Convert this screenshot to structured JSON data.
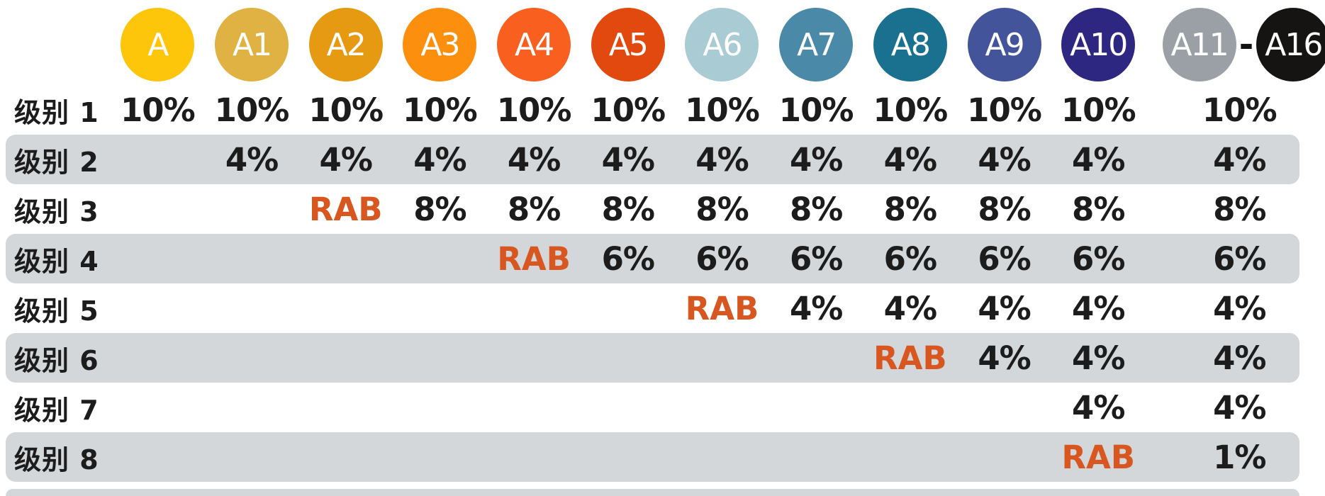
{
  "chart_data": {
    "type": "table",
    "description_columns_note": "Header badges A through A10 plus a merged A11-A16 group; rows are levels with referral percentages; RAB markers in accent orange.",
    "columns": [
      {
        "id": "A",
        "label": "A",
        "color": "#FDC60B"
      },
      {
        "id": "A1",
        "label": "A1",
        "color": "#DFB243"
      },
      {
        "id": "A2",
        "label": "A2",
        "color": "#E59A12"
      },
      {
        "id": "A3",
        "label": "A3",
        "color": "#FD8F0E"
      },
      {
        "id": "A4",
        "label": "A4",
        "color": "#F96020"
      },
      {
        "id": "A5",
        "label": "A5",
        "color": "#E2490F"
      },
      {
        "id": "A6",
        "label": "A6",
        "color": "#A9CBD3"
      },
      {
        "id": "A7",
        "label": "A7",
        "color": "#4A89A7"
      },
      {
        "id": "A8",
        "label": "A8",
        "color": "#19708F"
      },
      {
        "id": "A9",
        "label": "A9",
        "color": "#44549B"
      },
      {
        "id": "A10",
        "label": "A10",
        "color": "#2D2781"
      },
      {
        "id": "A11",
        "label": "A11",
        "color": "#9AA0A6"
      },
      {
        "id": "A16",
        "label": "A16",
        "color": "#161413"
      }
    ],
    "header_separator": "-",
    "value_columns": [
      "A",
      "A1",
      "A2",
      "A3",
      "A4",
      "A5",
      "A6",
      "A7",
      "A8",
      "A9",
      "A10",
      "A11-A16"
    ],
    "rows": [
      {
        "label": "级别 1",
        "shaded": false,
        "values": [
          "10%",
          "10%",
          "10%",
          "10%",
          "10%",
          "10%",
          "10%",
          "10%",
          "10%",
          "10%",
          "10%",
          "10%"
        ]
      },
      {
        "label": "级别 2",
        "shaded": true,
        "values": [
          "",
          "4%",
          "4%",
          "4%",
          "4%",
          "4%",
          "4%",
          "4%",
          "4%",
          "4%",
          "4%",
          "4%"
        ]
      },
      {
        "label": "级别 3",
        "shaded": false,
        "values": [
          "",
          "",
          "RAB",
          "8%",
          "8%",
          "8%",
          "8%",
          "8%",
          "8%",
          "8%",
          "8%",
          "8%"
        ]
      },
      {
        "label": "级别 4",
        "shaded": true,
        "values": [
          "",
          "",
          "",
          "",
          "RAB",
          "6%",
          "6%",
          "6%",
          "6%",
          "6%",
          "6%",
          "6%"
        ]
      },
      {
        "label": "级别 5",
        "shaded": false,
        "values": [
          "",
          "",
          "",
          "",
          "",
          "",
          "RAB",
          "4%",
          "4%",
          "4%",
          "4%",
          "4%"
        ]
      },
      {
        "label": "级别 6",
        "shaded": true,
        "values": [
          "",
          "",
          "",
          "",
          "",
          "",
          "",
          "",
          "RAB",
          "4%",
          "4%",
          "4%"
        ]
      },
      {
        "label": "级别 7",
        "shaded": false,
        "values": [
          "",
          "",
          "",
          "",
          "",
          "",
          "",
          "",
          "",
          "",
          "4%",
          "4%"
        ]
      },
      {
        "label": "级别 8",
        "shaded": true,
        "values": [
          "",
          "",
          "",
          "",
          "",
          "",
          "",
          "",
          "",
          "",
          "RAB",
          "1%"
        ]
      }
    ]
  },
  "colors": {
    "background": "#FFFFFF",
    "band": "#D3D7D9",
    "rab_accent": "#D85720",
    "value_text": "#1C1C1C",
    "circle_text": "#FFFFFF"
  }
}
